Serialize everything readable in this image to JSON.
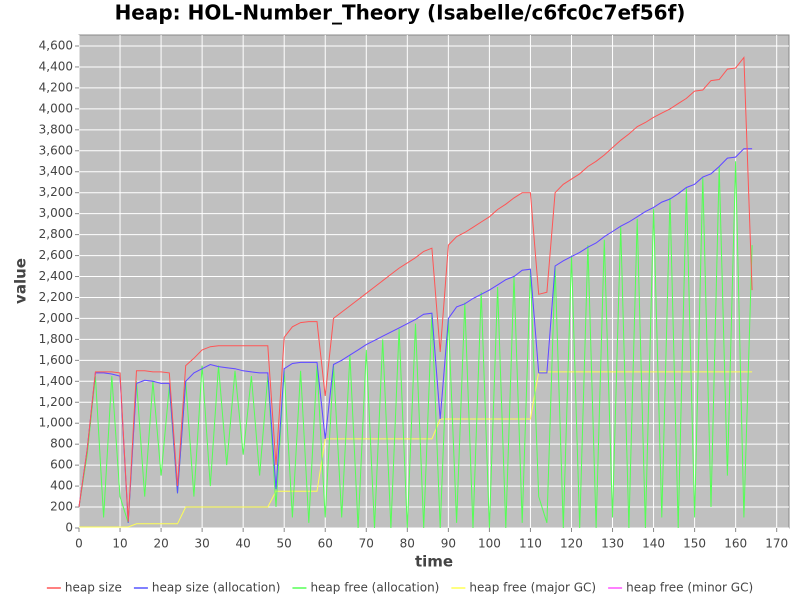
{
  "chart_data": {
    "type": "line",
    "title": "Heap: HOL-Number_Theory (Isabelle/c6fc0c7ef56f)",
    "x_label": "time",
    "y_label": "value",
    "xlim": [
      0,
      173
    ],
    "ylim": [
      0,
      4705
    ],
    "xticks": [
      0,
      10,
      20,
      30,
      40,
      50,
      60,
      70,
      80,
      90,
      100,
      110,
      120,
      130,
      140,
      150,
      160,
      170
    ],
    "yticks": [
      0,
      200,
      400,
      600,
      800,
      {
        "value": 1000,
        "label": "1,000"
      },
      {
        "value": 1200,
        "label": "1,200"
      },
      {
        "value": 1400,
        "label": "1,400"
      },
      {
        "value": 1600,
        "label": "1,600"
      },
      {
        "value": 1800,
        "label": "1,800"
      },
      {
        "value": 2000,
        "label": "2,000"
      },
      {
        "value": 2200,
        "label": "2,200"
      },
      {
        "value": 2400,
        "label": "2,400"
      },
      {
        "value": 2600,
        "label": "2,600"
      },
      {
        "value": 2800,
        "label": "2,800"
      },
      {
        "value": 3000,
        "label": "3,000"
      },
      {
        "value": 3200,
        "label": "3,200"
      },
      {
        "value": 3400,
        "label": "3,400"
      },
      {
        "value": 3600,
        "label": "3,600"
      },
      {
        "value": 3800,
        "label": "3,800"
      },
      {
        "value": 4000,
        "label": "4,000"
      },
      {
        "value": 4200,
        "label": "4,200"
      },
      {
        "value": 4400,
        "label": "4,400"
      },
      {
        "value": 4600,
        "label": "4,600"
      }
    ],
    "grid": true,
    "legend": "bottom",
    "x": [
      0,
      2,
      4,
      6,
      8,
      10,
      12,
      14,
      16,
      18,
      20,
      22,
      24,
      26,
      28,
      30,
      32,
      34,
      36,
      38,
      40,
      42,
      44,
      46,
      48,
      50,
      52,
      54,
      56,
      58,
      60,
      62,
      64,
      66,
      68,
      70,
      72,
      74,
      76,
      78,
      80,
      82,
      84,
      86,
      88,
      90,
      92,
      94,
      96,
      98,
      100,
      102,
      104,
      106,
      108,
      110,
      112,
      114,
      116,
      118,
      120,
      122,
      124,
      126,
      128,
      130,
      132,
      134,
      136,
      138,
      140,
      142,
      144,
      146,
      148,
      150,
      152,
      154,
      156,
      158,
      160,
      162,
      164
    ],
    "series": [
      {
        "name": "heap size",
        "color": "#ff5555",
        "values": [
          200,
          750,
          1490,
          1490,
          1490,
          1480,
          60,
          1500,
          1500,
          1490,
          1490,
          1480,
          400,
          1550,
          1620,
          1700,
          1730,
          1740,
          1740,
          1740,
          1740,
          1740,
          1740,
          1740,
          600,
          1820,
          1920,
          1960,
          1970,
          1970,
          1260,
          2000,
          2060,
          2120,
          2180,
          2240,
          2300,
          2360,
          2420,
          2480,
          2530,
          2580,
          2640,
          2670,
          1680,
          2700,
          2780,
          2820,
          2870,
          2920,
          2970,
          3040,
          3090,
          3150,
          3200,
          3200,
          2230,
          2250,
          3200,
          3280,
          3330,
          3380,
          3450,
          3500,
          3560,
          3630,
          3700,
          3760,
          3830,
          3870,
          3920,
          3960,
          4000,
          4050,
          4100,
          4170,
          4180,
          4270,
          4280,
          4380,
          4390,
          4490,
          2270
        ]
      },
      {
        "name": "heap size (allocation)",
        "color": "#5555ff",
        "values": [
          200,
          750,
          1480,
          1480,
          1470,
          1450,
          50,
          1380,
          1410,
          1400,
          1380,
          1380,
          330,
          1400,
          1480,
          1520,
          1560,
          1540,
          1530,
          1520,
          1500,
          1490,
          1480,
          1480,
          370,
          1520,
          1570,
          1580,
          1580,
          1580,
          850,
          1560,
          1600,
          1650,
          1700,
          1750,
          1790,
          1830,
          1870,
          1910,
          1950,
          1990,
          2040,
          2050,
          1040,
          2000,
          2110,
          2140,
          2190,
          2230,
          2270,
          2320,
          2370,
          2400,
          2460,
          2470,
          1480,
          1480,
          2500,
          2550,
          2590,
          2630,
          2680,
          2720,
          2780,
          2830,
          2880,
          2920,
          2970,
          3020,
          3060,
          3110,
          3140,
          3190,
          3250,
          3280,
          3350,
          3380,
          3450,
          3530,
          3540,
          3620,
          3620
        ]
      },
      {
        "name": "heap free (allocation)",
        "color": "#55ff55",
        "values": [
          200,
          700,
          1450,
          100,
          1450,
          300,
          50,
          1400,
          300,
          1400,
          500,
          1350,
          330,
          1400,
          300,
          1550,
          400,
          1550,
          600,
          1500,
          700,
          1450,
          500,
          1450,
          200,
          1500,
          100,
          1500,
          50,
          1550,
          100,
          1550,
          100,
          1650,
          0,
          1700,
          0,
          1800,
          0,
          1900,
          0,
          1950,
          0,
          2050,
          0,
          2000,
          50,
          2150,
          0,
          2250,
          0,
          2300,
          0,
          2400,
          50,
          2450,
          300,
          50,
          2500,
          0,
          2600,
          0,
          2700,
          0,
          2750,
          100,
          2880,
          0,
          2950,
          0,
          3050,
          100,
          3150,
          0,
          3250,
          100,
          3350,
          200,
          3450,
          500,
          3500,
          100,
          2700
        ]
      },
      {
        "name": "heap free (major GC)",
        "color": "#ffff55",
        "values": [
          10,
          10,
          10,
          10,
          10,
          10,
          10,
          40,
          40,
          40,
          40,
          40,
          40,
          200,
          200,
          200,
          200,
          200,
          200,
          200,
          200,
          200,
          200,
          200,
          350,
          350,
          350,
          350,
          350,
          350,
          850,
          850,
          850,
          850,
          850,
          850,
          850,
          850,
          850,
          850,
          850,
          850,
          850,
          850,
          1040,
          1040,
          1040,
          1040,
          1040,
          1040,
          1040,
          1040,
          1040,
          1040,
          1040,
          1040,
          1490,
          1490,
          1490,
          1490,
          1490,
          1490,
          1490,
          1490,
          1490,
          1490,
          1490,
          1490,
          1490,
          1490,
          1490,
          1490,
          1490,
          1490,
          1490,
          1490,
          1490,
          1490,
          1490,
          1490,
          1490,
          1490,
          1490
        ]
      },
      {
        "name": "heap free (minor GC)",
        "color": "#ff55ff",
        "values": [
          200,
          750,
          1480,
          1480,
          1470,
          1450,
          50,
          1380,
          1410,
          1400,
          1380,
          1380,
          330,
          1400,
          1480,
          1520,
          1560,
          1540,
          1530,
          1520,
          1500,
          1490,
          1480,
          1480,
          370,
          1520,
          1570,
          1580,
          1580,
          1580,
          850,
          1560,
          1600,
          1650,
          1700,
          1750,
          1790,
          1830,
          1870,
          1910,
          1950,
          1990,
          2040,
          2050,
          1040,
          2000,
          2110,
          2140,
          2190,
          2230,
          2270,
          2320,
          2370,
          2400,
          2460,
          2470,
          1480,
          1480,
          2500,
          2550,
          2590,
          2630,
          2680,
          2720,
          2780,
          2830,
          2880,
          2920,
          2970,
          3020,
          3060,
          3110,
          3140,
          3190,
          3250,
          3280,
          3350,
          3380,
          3450,
          3530,
          3540,
          3620,
          3620
        ]
      }
    ]
  }
}
